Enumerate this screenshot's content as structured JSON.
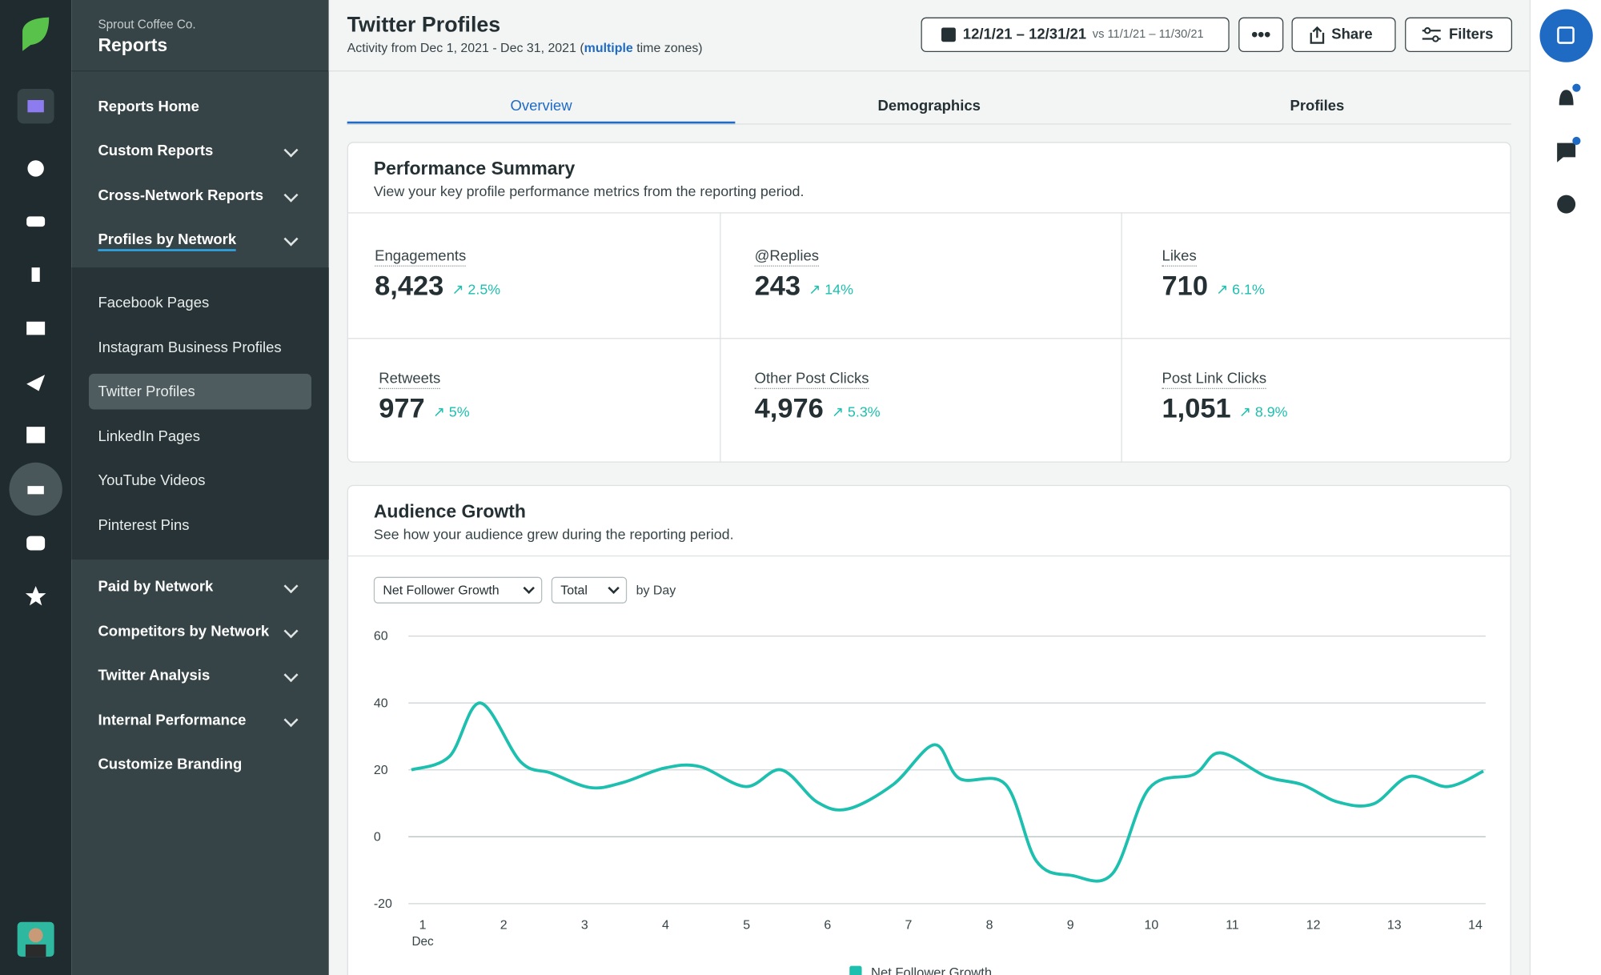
{
  "sidebar": {
    "company": "Sprout Coffee Co.",
    "title": "Reports",
    "nav": [
      "Reports Home",
      "Custom Reports",
      "Cross-Network Reports",
      "Profiles by Network"
    ],
    "sub": [
      "Facebook Pages",
      "Instagram Business Profiles",
      "Twitter Profiles",
      "LinkedIn Pages",
      "YouTube Videos",
      "Pinterest Pins"
    ],
    "more": [
      "Paid by Network",
      "Competitors by Network",
      "Twitter Analysis",
      "Internal Performance",
      "Customize Branding"
    ]
  },
  "header": {
    "title": "Twitter Profiles",
    "subtitle_start": "Activity from Dec 1, 2021 - Dec 31, 2021 (",
    "subtitle_link": "multiple",
    "subtitle_end": " time zones)",
    "date_range": "12/1/21 – 12/31/21",
    "compare": "vs 11/1/21 – 11/30/21",
    "share": "Share",
    "filters": "Filters"
  },
  "tabs": [
    "Overview",
    "Demographics",
    "Profiles"
  ],
  "summary": {
    "title": "Performance Summary",
    "description": "View your key profile performance metrics from the reporting period.",
    "metrics": [
      {
        "label": "Engagements",
        "value": "8,423",
        "change": "2.5%"
      },
      {
        "label": "@Replies",
        "value": "243",
        "change": "14%"
      },
      {
        "label": "Likes",
        "value": "710",
        "change": "6.1%"
      },
      {
        "label": "Retweets",
        "value": "977",
        "change": "5%"
      },
      {
        "label": "Other Post Clicks",
        "value": "4,976",
        "change": "5.3%"
      },
      {
        "label": "Post Link Clicks",
        "value": "1,051",
        "change": "8.9%"
      }
    ]
  },
  "audience": {
    "title": "Audience Growth",
    "description": "See how your audience grew during the reporting period.",
    "metric_select": "Net Follower Growth",
    "mode_select": "Total",
    "period": "by Day"
  },
  "chart_data": {
    "type": "line",
    "x_axis_month": "Dec",
    "x": [
      0.86,
      1.33,
      1.71,
      2.21,
      2.59,
      3.07,
      3.47,
      3.98,
      4.42,
      4.99,
      5.43,
      5.87,
      6.25,
      6.81,
      7.32,
      7.63,
      8.2,
      8.58,
      9.02,
      9.52,
      9.97,
      10.53,
      10.85,
      11.42,
      11.86,
      12.3,
      12.74,
      13.18,
      13.66,
      14.1
    ],
    "series": [
      {
        "name": "Net Follower Growth",
        "color": "#1dbfaf",
        "values": [
          20,
          24,
          40,
          22.4,
          19,
          14.7,
          16.2,
          20.5,
          21,
          15,
          20,
          10.4,
          8.3,
          15.6,
          27.5,
          17.4,
          15.6,
          -7.3,
          -11.6,
          -11,
          14.4,
          18.7,
          25.1,
          18,
          15.6,
          10.4,
          9.8,
          18,
          15,
          19.6
        ]
      }
    ],
    "xlim": [
      0.86,
      14.1
    ],
    "xticks": [
      1,
      2,
      3,
      4,
      5,
      6,
      7,
      8,
      9,
      10,
      11,
      12,
      13,
      14
    ],
    "ylim": [
      -20,
      60
    ],
    "yticks": [
      -20,
      0,
      20,
      40,
      60
    ],
    "grid": true
  }
}
